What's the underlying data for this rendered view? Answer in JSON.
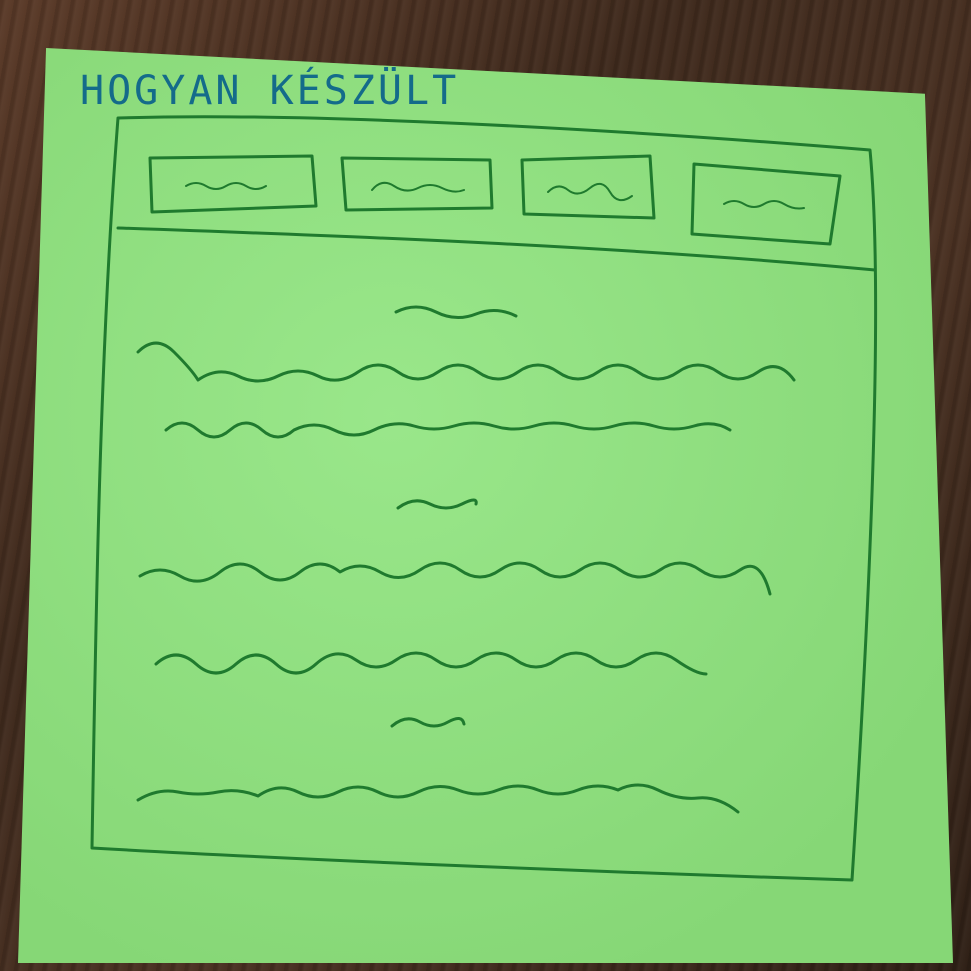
{
  "note": {
    "title": "HOGYAN KÉSZÜLT"
  },
  "colors": {
    "note_paper": "#8ee47d",
    "pencil_green": "#1f7a2e",
    "pen_blue": "#146b8a",
    "desk_wood": "#4a3122"
  },
  "sketch": {
    "tab_count": 4,
    "body_scribble_rows": 8
  }
}
